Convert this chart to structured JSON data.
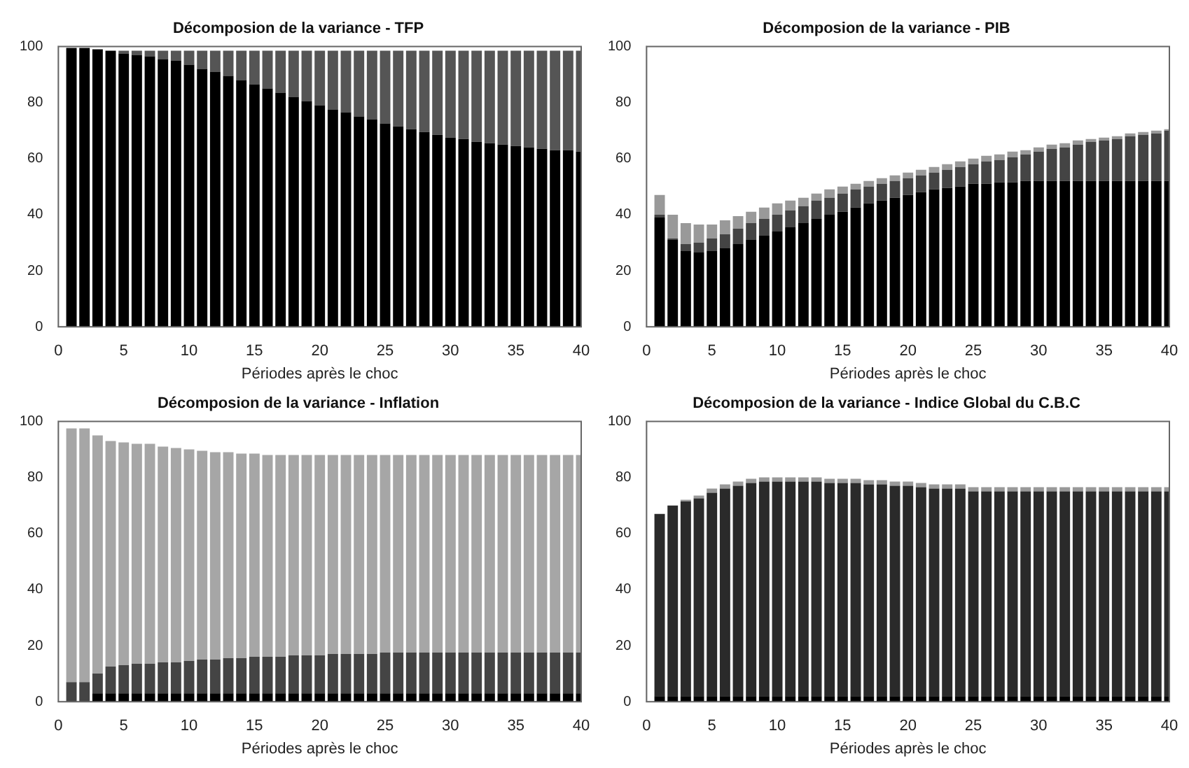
{
  "chart_data": [
    {
      "type": "bar",
      "stacked": true,
      "title": "Décomposion de la variance - TFP",
      "xlabel": "Périodes après le choc",
      "x": [
        1,
        2,
        3,
        4,
        5,
        6,
        7,
        8,
        9,
        10,
        11,
        12,
        13,
        14,
        15,
        16,
        17,
        18,
        19,
        20,
        21,
        22,
        23,
        24,
        25,
        26,
        27,
        28,
        29,
        30,
        31,
        32,
        33,
        34,
        35,
        36,
        37,
        38,
        39,
        40
      ],
      "xlim": [
        0,
        40
      ],
      "xticks": [
        0,
        5,
        10,
        15,
        20,
        25,
        30,
        35,
        40
      ],
      "ylim": [
        0,
        100
      ],
      "yticks": [
        0,
        20,
        40,
        60,
        80,
        100
      ],
      "grid": false,
      "legend": false,
      "series": [
        {
          "color": "#000000",
          "values": [
            99.5,
            99.5,
            99,
            98.5,
            97.5,
            97,
            96.5,
            95.5,
            95,
            93.5,
            92,
            91,
            89.5,
            88,
            86.5,
            85,
            83.5,
            82,
            80.5,
            79,
            77.5,
            76.5,
            75,
            74,
            72.5,
            71.5,
            70.5,
            69.5,
            68.5,
            67.5,
            67,
            66,
            65.5,
            65,
            64.5,
            64,
            63.5,
            63,
            63,
            62.5
          ]
        },
        {
          "color": "#555555",
          "values": [
            0,
            0,
            0,
            0,
            1,
            1.5,
            2,
            3,
            3.5,
            5,
            6.5,
            7.5,
            9,
            10.5,
            12,
            13.5,
            15,
            16.5,
            18,
            19.5,
            21,
            22,
            23.5,
            24.5,
            26,
            27,
            28,
            29,
            30,
            31,
            31.5,
            32.5,
            33,
            33.5,
            34,
            34.5,
            35,
            35.5,
            35.5,
            36
          ]
        }
      ]
    },
    {
      "type": "bar",
      "stacked": true,
      "title": "Décomposion de la variance - PIB",
      "xlabel": "Périodes après le choc",
      "x": [
        1,
        2,
        3,
        4,
        5,
        6,
        7,
        8,
        9,
        10,
        11,
        12,
        13,
        14,
        15,
        16,
        17,
        18,
        19,
        20,
        21,
        22,
        23,
        24,
        25,
        26,
        27,
        28,
        29,
        30,
        31,
        32,
        33,
        34,
        35,
        36,
        37,
        38,
        39,
        40
      ],
      "xlim": [
        0,
        40
      ],
      "xticks": [
        0,
        5,
        10,
        15,
        20,
        25,
        30,
        35,
        40
      ],
      "ylim": [
        0,
        100
      ],
      "yticks": [
        0,
        20,
        40,
        60,
        80,
        100
      ],
      "grid": false,
      "legend": false,
      "series": [
        {
          "color": "#000000",
          "values": [
            39,
            31,
            27,
            26.5,
            27,
            28,
            29.5,
            31,
            32.5,
            34,
            35.5,
            37,
            38.5,
            40,
            41,
            42.5,
            44,
            45,
            46,
            47,
            48,
            49,
            49.5,
            50,
            51,
            51,
            51.5,
            51.5,
            52,
            52,
            52,
            52,
            52,
            52,
            52,
            52,
            52,
            52,
            52,
            52
          ]
        },
        {
          "color": "#444444",
          "values": [
            1,
            0.5,
            2.5,
            3.5,
            4.5,
            5,
            5.5,
            6,
            6,
            6,
            6,
            6,
            6.5,
            6,
            6.5,
            6.5,
            6,
            6,
            6,
            6,
            6,
            6,
            6.5,
            7,
            7,
            8,
            8,
            9,
            9.5,
            10.5,
            11.5,
            12,
            13,
            14,
            14.5,
            15,
            16,
            16.5,
            17,
            18
          ]
        },
        {
          "color": "#999999",
          "values": [
            7,
            8.5,
            7.5,
            6.5,
            5,
            5,
            4.5,
            4,
            4,
            4,
            3.5,
            3,
            2.5,
            3,
            2.5,
            2,
            2,
            2,
            2,
            2,
            2,
            2,
            2,
            2,
            2,
            2,
            2,
            2,
            1.5,
            1.5,
            1.5,
            1.5,
            1.5,
            1,
            1,
            1,
            1,
            1,
            1,
            0.5
          ]
        }
      ]
    },
    {
      "type": "bar",
      "stacked": true,
      "title": "Décomposion de la variance - Inflation",
      "xlabel": "Périodes après le choc",
      "x": [
        1,
        2,
        3,
        4,
        5,
        6,
        7,
        8,
        9,
        10,
        11,
        12,
        13,
        14,
        15,
        16,
        17,
        18,
        19,
        20,
        21,
        22,
        23,
        24,
        25,
        26,
        27,
        28,
        29,
        30,
        31,
        32,
        33,
        34,
        35,
        36,
        37,
        38,
        39,
        40
      ],
      "xlim": [
        0,
        40
      ],
      "xticks": [
        0,
        5,
        10,
        15,
        20,
        25,
        30,
        35,
        40
      ],
      "ylim": [
        0,
        100
      ],
      "yticks": [
        0,
        20,
        40,
        60,
        80,
        100
      ],
      "grid": false,
      "legend": false,
      "series": [
        {
          "color": "#000000",
          "values": [
            0,
            0,
            3,
            3,
            3,
            3,
            3,
            3,
            3,
            3,
            3,
            3,
            3,
            3,
            3,
            3,
            3,
            3,
            3,
            3,
            3,
            3,
            3,
            3,
            3,
            3,
            3,
            3,
            3,
            3,
            3,
            3,
            3,
            3,
            3,
            3,
            3,
            3,
            3,
            3
          ]
        },
        {
          "color": "#444444",
          "values": [
            7,
            7,
            7,
            9.5,
            10,
            10.5,
            10.5,
            11,
            11,
            11.5,
            12,
            12,
            12.5,
            12.5,
            13,
            13,
            13,
            13.5,
            13.5,
            13.5,
            14,
            14,
            14,
            14,
            14.5,
            14.5,
            14.5,
            14.5,
            14.5,
            14.5,
            14.5,
            14.5,
            14.5,
            14.5,
            14.5,
            14.5,
            14.5,
            14.5,
            14.5,
            14.5
          ]
        },
        {
          "color": "#a6a6a6",
          "values": [
            90.5,
            90.5,
            85,
            80.5,
            79.5,
            78.5,
            78.5,
            77,
            76.5,
            75.5,
            74.5,
            74,
            73.5,
            73,
            72.5,
            72,
            72,
            71.5,
            71.5,
            71.5,
            71,
            71,
            71,
            71,
            70.5,
            70.5,
            70.5,
            70.5,
            70.5,
            70.5,
            70.5,
            70.5,
            70.5,
            70.5,
            70.5,
            70.5,
            70.5,
            70.5,
            70.5,
            70.5
          ]
        }
      ]
    },
    {
      "type": "bar",
      "stacked": true,
      "title": "Décomposion de la variance - Indice Global du C.B.C",
      "xlabel": "Périodes après le choc",
      "x": [
        1,
        2,
        3,
        4,
        5,
        6,
        7,
        8,
        9,
        10,
        11,
        12,
        13,
        14,
        15,
        16,
        17,
        18,
        19,
        20,
        21,
        22,
        23,
        24,
        25,
        26,
        27,
        28,
        29,
        30,
        31,
        32,
        33,
        34,
        35,
        36,
        37,
        38,
        39,
        40
      ],
      "xlim": [
        0,
        40
      ],
      "xticks": [
        0,
        5,
        10,
        15,
        20,
        25,
        30,
        35,
        40
      ],
      "ylim": [
        0,
        100
      ],
      "yticks": [
        0,
        20,
        40,
        60,
        80,
        100
      ],
      "grid": false,
      "legend": false,
      "series": [
        {
          "color": "#000000",
          "values": [
            2,
            2,
            2,
            2,
            2,
            2,
            2,
            2,
            2,
            2,
            2,
            2,
            2,
            2,
            2,
            2,
            2,
            2,
            2,
            2,
            2,
            2,
            2,
            2,
            2,
            2,
            2,
            2,
            2,
            2,
            2,
            2,
            2,
            2,
            2,
            2,
            2,
            2,
            2,
            2
          ]
        },
        {
          "color": "#2a2a2a",
          "values": [
            65,
            68,
            69.5,
            70.5,
            72.5,
            74,
            75,
            76,
            76.5,
            76.5,
            76.5,
            76.5,
            76.5,
            76,
            76,
            76,
            75.5,
            75.5,
            75,
            75,
            74.5,
            74,
            74,
            74,
            73,
            73,
            73,
            73,
            73,
            73,
            73,
            73,
            73,
            73,
            73,
            73,
            73,
            73,
            73,
            73
          ]
        },
        {
          "color": "#999999",
          "values": [
            0,
            0,
            0.5,
            1,
            1.5,
            1.5,
            1.5,
            1.5,
            1.5,
            1.5,
            1.5,
            1.5,
            1.5,
            1.5,
            1.5,
            1.5,
            1.5,
            1.5,
            1.5,
            1.5,
            1.5,
            1.5,
            1.5,
            1.5,
            1.5,
            1.5,
            1.5,
            1.5,
            1.5,
            1.5,
            1.5,
            1.5,
            1.5,
            1.5,
            1.5,
            1.5,
            1.5,
            1.5,
            1.5,
            1.5
          ]
        }
      ]
    }
  ]
}
